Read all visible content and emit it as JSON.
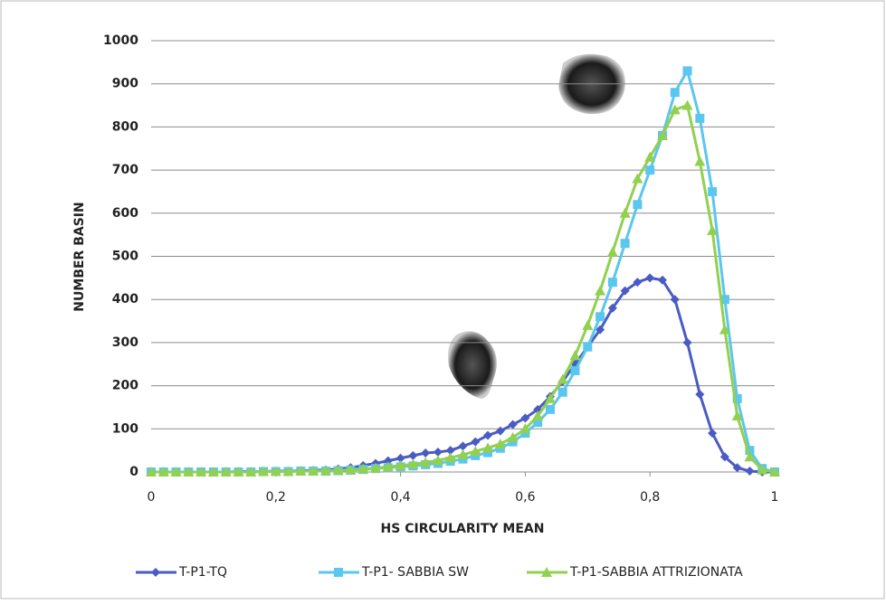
{
  "chart_data": {
    "type": "line",
    "x_label": "HS CIRCULARITY MEAN",
    "y_label": "NUMBER BASIN",
    "x": [
      0,
      0.02,
      0.04,
      0.06,
      0.08,
      0.1,
      0.12,
      0.14,
      0.16,
      0.18,
      0.2,
      0.22,
      0.24,
      0.26,
      0.28,
      0.3,
      0.32,
      0.34,
      0.36,
      0.38,
      0.4,
      0.42,
      0.44,
      0.46,
      0.48,
      0.5,
      0.52,
      0.54,
      0.56,
      0.58,
      0.6,
      0.62,
      0.64,
      0.66,
      0.68,
      0.7,
      0.72,
      0.74,
      0.76,
      0.78,
      0.8,
      0.82,
      0.84,
      0.86,
      0.88,
      0.9,
      0.92,
      0.94,
      0.96,
      0.98,
      1
    ],
    "series": [
      {
        "name": "T-P1-TQ",
        "color": "#4a5bc4",
        "marker": "diamond",
        "values": [
          0,
          0,
          0,
          0,
          0,
          0,
          0,
          1,
          1,
          1,
          2,
          2,
          3,
          4,
          5,
          7,
          10,
          15,
          20,
          26,
          32,
          38,
          44,
          46,
          50,
          60,
          70,
          85,
          95,
          110,
          125,
          145,
          175,
          210,
          250,
          290,
          330,
          380,
          420,
          440,
          450,
          445,
          400,
          300,
          180,
          90,
          35,
          10,
          2,
          0,
          0
        ]
      },
      {
        "name": "T-P1- SABBIA SW",
        "color": "#5bc6ee",
        "marker": "square",
        "values": [
          0,
          0,
          0,
          0,
          0,
          0,
          0,
          0,
          0,
          1,
          1,
          1,
          2,
          2,
          2,
          3,
          4,
          6,
          8,
          10,
          12,
          14,
          17,
          20,
          25,
          30,
          38,
          45,
          55,
          70,
          90,
          115,
          145,
          185,
          235,
          290,
          360,
          440,
          530,
          620,
          700,
          780,
          880,
          930,
          820,
          650,
          400,
          170,
          50,
          8,
          0
        ]
      },
      {
        "name": "T-P1-SABBIA ATTRIZIONATA",
        "color": "#92d050",
        "marker": "triangle",
        "values": [
          0,
          0,
          0,
          0,
          0,
          0,
          0,
          0,
          0,
          1,
          1,
          1,
          2,
          2,
          3,
          4,
          5,
          7,
          9,
          12,
          15,
          18,
          22,
          27,
          33,
          40,
          48,
          56,
          65,
          80,
          100,
          130,
          170,
          215,
          270,
          340,
          420,
          510,
          600,
          680,
          730,
          780,
          840,
          850,
          720,
          560,
          330,
          130,
          35,
          5,
          0
        ]
      }
    ],
    "xlim": [
      0,
      1
    ],
    "xticks": [
      0,
      {
        "value": 0.2,
        "label": "0,2"
      },
      {
        "value": 0.4,
        "label": "0,4"
      },
      {
        "value": 0.6,
        "label": "0,6"
      },
      {
        "value": 0.8,
        "label": "0,8"
      },
      1
    ],
    "ylim": [
      0,
      1000
    ],
    "yticks": [
      0,
      100,
      200,
      300,
      400,
      500,
      600,
      700,
      800,
      900,
      1000
    ],
    "grid": true,
    "legend": "bottom"
  }
}
